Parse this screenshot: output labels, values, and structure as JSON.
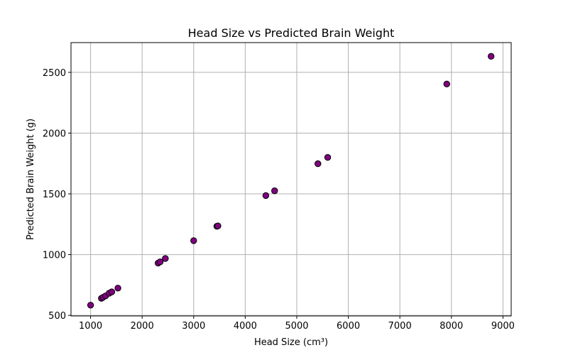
{
  "chart_data": {
    "type": "scatter",
    "title": "Head Size vs Predicted Brain Weight",
    "xlabel": "Head Size (cm³)",
    "ylabel": "Predicted Brain Weight (g)",
    "xlim": [
      620,
      9160
    ],
    "ylim": [
      495,
      2745
    ],
    "xticks": [
      1000,
      2000,
      3000,
      4000,
      5000,
      6000,
      7000,
      8000,
      9000
    ],
    "yticks": [
      500,
      1000,
      1500,
      2000,
      2500
    ],
    "grid": true,
    "marker_color": "#800080",
    "marker_edge": "#000000",
    "points": [
      {
        "x": 1000,
        "y": 584
      },
      {
        "x": 1210,
        "y": 640
      },
      {
        "x": 1240,
        "y": 648
      },
      {
        "x": 1290,
        "y": 660
      },
      {
        "x": 1360,
        "y": 682
      },
      {
        "x": 1410,
        "y": 693
      },
      {
        "x": 1530,
        "y": 724
      },
      {
        "x": 2310,
        "y": 930
      },
      {
        "x": 2350,
        "y": 940
      },
      {
        "x": 2450,
        "y": 968
      },
      {
        "x": 3000,
        "y": 1115
      },
      {
        "x": 3450,
        "y": 1233
      },
      {
        "x": 3470,
        "y": 1236
      },
      {
        "x": 4400,
        "y": 1486
      },
      {
        "x": 4570,
        "y": 1525
      },
      {
        "x": 5410,
        "y": 1748
      },
      {
        "x": 5600,
        "y": 1800
      },
      {
        "x": 7910,
        "y": 2404
      },
      {
        "x": 8770,
        "y": 2632
      }
    ]
  }
}
